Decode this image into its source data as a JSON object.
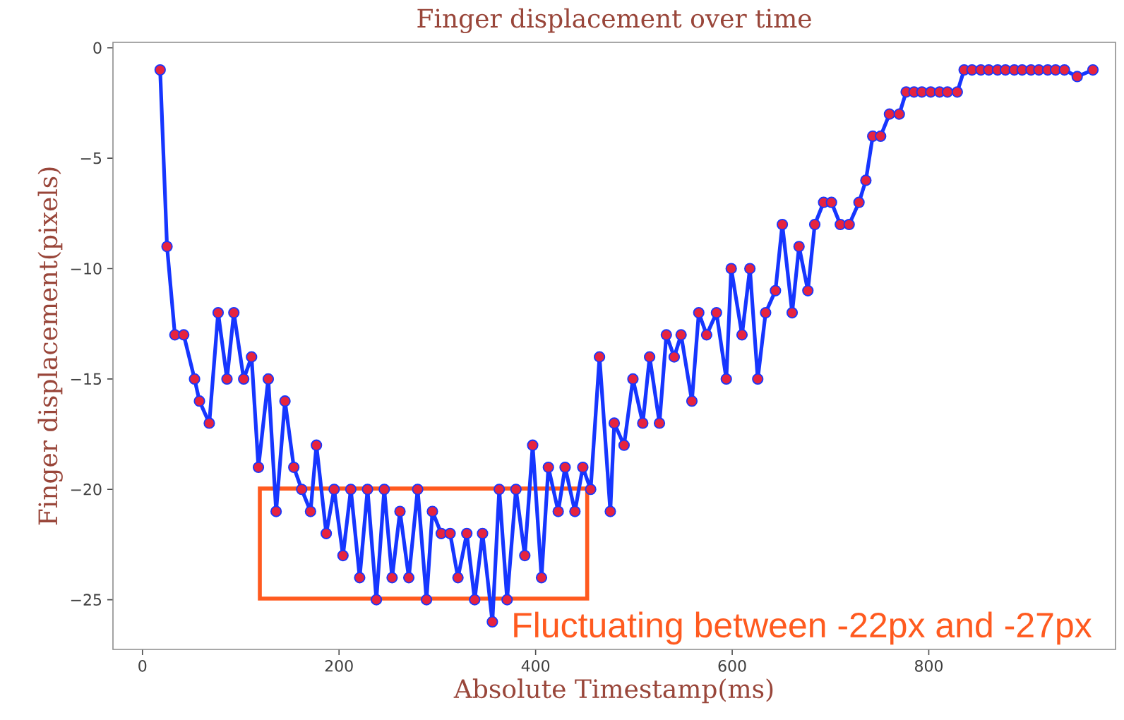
{
  "chart_data": {
    "type": "line",
    "title": "Finger displacement over time",
    "xlabel": "Absolute Timestamp(ms)",
    "ylabel": "Finger displacement(pixels)",
    "annotations": [
      "Fluctuating between -22px and -27px"
    ],
    "xlim": [
      -30,
      990
    ],
    "ylim": [
      -27.25,
      0.25
    ],
    "xticks": [
      0,
      200,
      400,
      600,
      800
    ],
    "yticks": [
      {
        "value": -25,
        "label": "−25"
      },
      {
        "value": -20,
        "label": "−20"
      },
      {
        "value": -15,
        "label": "−15"
      },
      {
        "value": -10,
        "label": "−10"
      },
      {
        "value": -5,
        "label": "−5"
      },
      0
    ],
    "marker": "circle",
    "line_style": "solid",
    "series": [
      {
        "color": "#1636ff",
        "x": [
          18,
          25,
          33,
          42,
          53,
          58,
          68,
          77,
          86,
          93,
          103,
          111,
          118,
          128,
          136,
          145,
          154,
          162,
          171,
          177,
          187,
          195,
          204,
          212,
          221,
          229,
          238,
          246,
          254,
          262,
          271,
          280,
          289,
          295,
          304,
          313,
          321,
          330,
          338,
          346,
          356,
          363,
          371,
          380,
          389,
          397,
          406,
          413,
          423,
          430,
          440,
          448,
          456,
          465,
          476,
          480,
          490,
          499,
          509,
          516,
          526,
          533,
          541,
          548,
          559,
          566,
          574,
          584,
          594,
          599,
          610,
          618,
          626,
          634,
          644,
          651,
          661,
          668,
          677,
          684,
          693,
          701,
          710,
          719,
          729,
          736,
          743,
          751,
          760,
          770,
          777,
          785,
          793,
          802,
          811,
          819,
          829,
          836,
          844,
          853,
          861,
          870,
          878,
          887,
          895,
          904,
          912,
          921,
          929,
          938,
          951,
          967
        ],
        "values": [
          -1,
          -9,
          -13,
          -13,
          -15,
          -16,
          -17,
          -12,
          -15,
          -12,
          -15,
          -14,
          -19,
          -15,
          -21,
          -16,
          -19,
          -20,
          -21,
          -18,
          -22,
          -20,
          -23,
          -20,
          -24,
          -20,
          -25,
          -20,
          -24,
          -21,
          -24,
          -20,
          -25,
          -21,
          -22,
          -22,
          -24,
          -22,
          -25,
          -22,
          -26,
          -20,
          -25,
          -20,
          -23,
          -18,
          -24,
          -19,
          -21,
          -19,
          -21,
          -19,
          -20,
          -14,
          -21,
          -17,
          -18,
          -15,
          -17,
          -14,
          -17,
          -13,
          -14,
          -13,
          -16,
          -12,
          -13,
          -12,
          -15,
          -10,
          -13,
          -10,
          -15,
          -12,
          -11,
          -8,
          -12,
          -9,
          -11,
          -8,
          -7,
          -7,
          -8,
          -8,
          -7,
          -6,
          -4,
          -4,
          -3,
          -3,
          -2,
          -2,
          -2,
          -2,
          -2,
          -2,
          -2,
          -1,
          -1,
          -1,
          -1,
          -1,
          -1,
          -1,
          -1,
          -1,
          -1,
          -1,
          -1,
          -1,
          -1.3,
          -1
        ],
        "colors": [
          "#e6243f",
          "#e6243f",
          "#e6243f",
          "#e6243f",
          "#e6243f",
          "#e6243f",
          "#e6243f",
          "#e6243f",
          "#e6243f",
          "#e6243f",
          "#e6243f",
          "#e6243f",
          "#e6243f",
          "#e6243f",
          "#e6243f",
          "#e6243f",
          "#e6243f",
          "#e6243f",
          "#e6243f",
          "#e6243f",
          "#e6243f",
          "#e6243f",
          "#e6243f",
          "#e6243f",
          "#e6243f",
          "#e6243f",
          "#e6243f",
          "#e6243f",
          "#e6243f",
          "#e6243f",
          "#e6243f",
          "#e6243f",
          "#e6243f",
          "#e6243f",
          "#e6243f",
          "#e6243f",
          "#e6243f",
          "#e6243f",
          "#e6243f",
          "#e6243f",
          "#e6243f",
          "#e6243f",
          "#e6243f",
          "#e6243f",
          "#e6243f",
          "#e6243f",
          "#e6243f",
          "#e6243f",
          "#e6243f",
          "#e6243f",
          "#e6243f",
          "#e6243f",
          "#e6243f",
          "#e6243f",
          "#e6243f",
          "#e6243f",
          "#e6243f",
          "#e6243f",
          "#e6243f",
          "#e6243f",
          "#e6243f",
          "#e6243f",
          "#e6243f",
          "#e6243f",
          "#e6243f",
          "#e6243f",
          "#e6243f",
          "#e6243f",
          "#e6243f",
          "#e6243f",
          "#e6243f",
          "#e6243f",
          "#e6243f",
          "#e6243f",
          "#e6243f",
          "#e6243f",
          "#e6243f",
          "#e6243f",
          "#e6243f",
          "#e6243f",
          "#e6243f",
          "#e6243f",
          "#e6243f",
          "#e6243f",
          "#e6243f",
          "#e6243f",
          "#e6243f",
          "#e6243f",
          "#e6243f",
          "#e6243f",
          "#e6243f",
          "#e6243f",
          "#e6243f",
          "#e6243f",
          "#e6243f",
          "#e6243f",
          "#e6243f",
          "#e6243f",
          "#e6243f",
          "#e6243f",
          "#e6243f",
          "#e6243f",
          "#e6243f",
          "#e6243f",
          "#e6243f",
          "#e6243f",
          "#e6243f",
          "#e6243f",
          "#e6243f",
          "#e6243f",
          "#e6243f",
          "#e6243f"
        ]
      }
    ]
  }
}
